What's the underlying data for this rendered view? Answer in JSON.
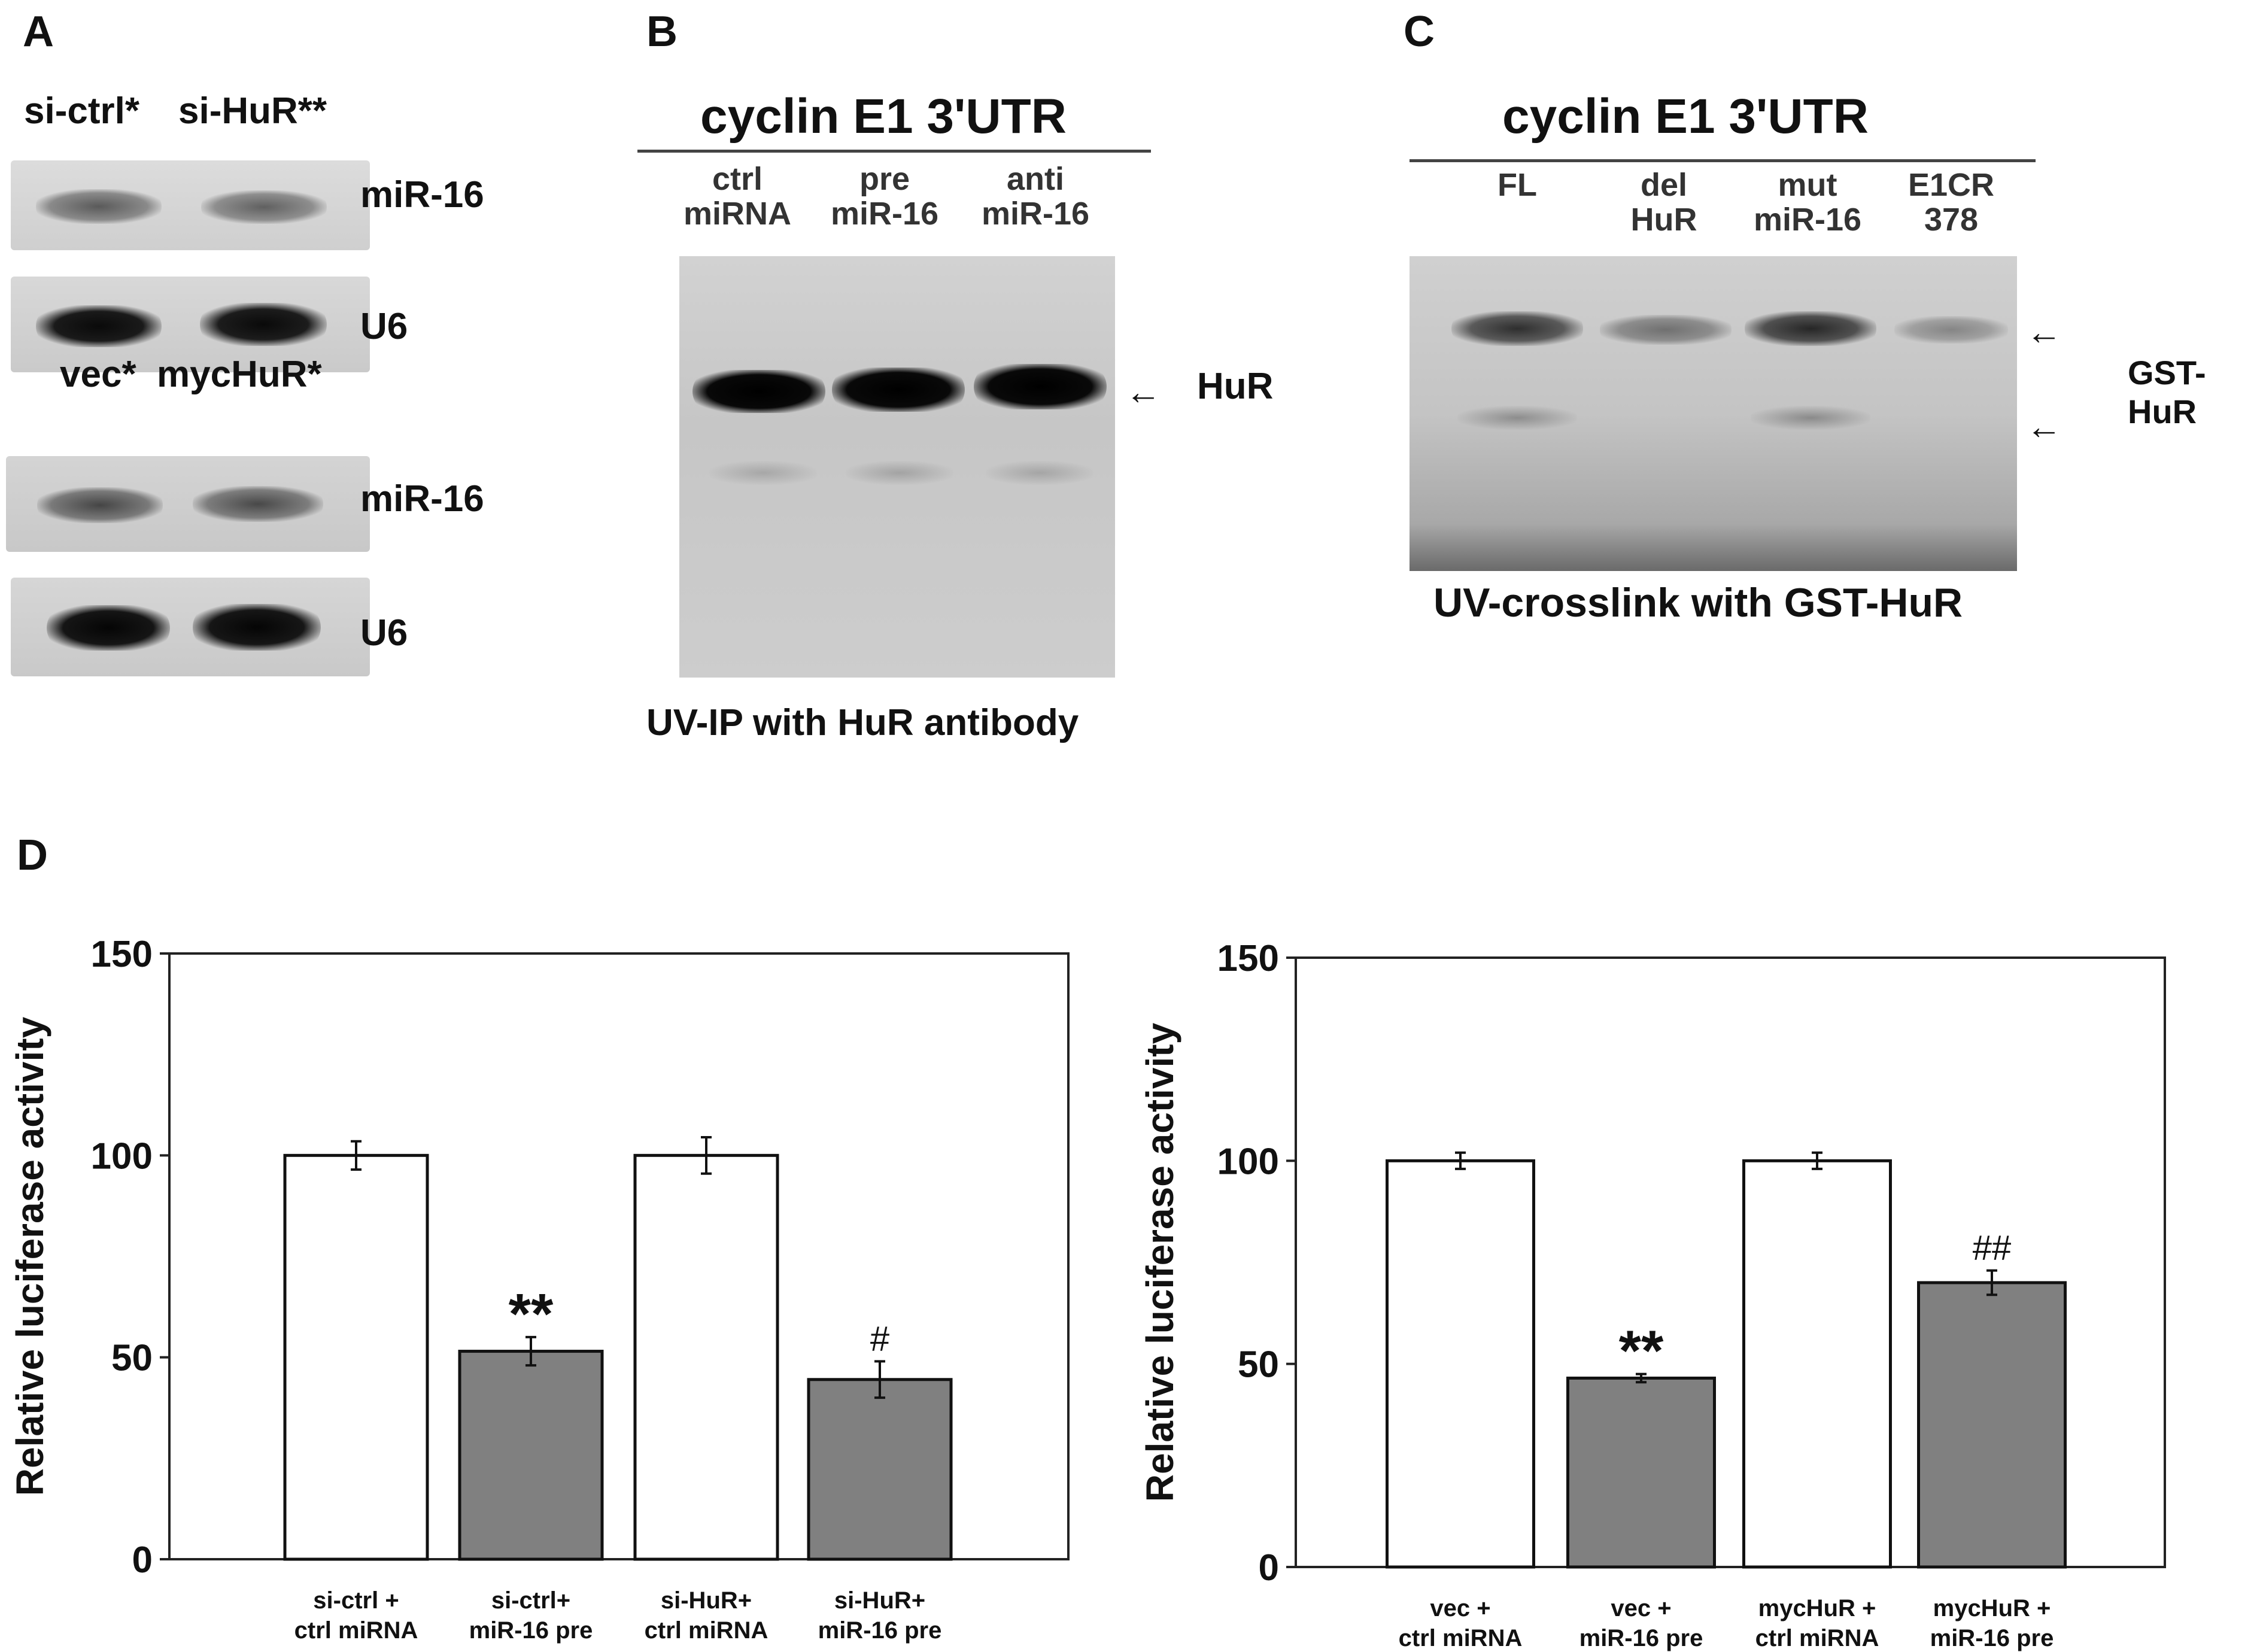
{
  "panel_a": {
    "letter": "A",
    "top_labels": [
      "si-ctrl*",
      "si-HuR**"
    ],
    "bottom_labels": [
      "vec*",
      "mycHuR*"
    ],
    "blots": [
      "miR-16",
      "U6",
      "miR-16",
      "U6"
    ]
  },
  "panel_b": {
    "letter": "B",
    "title": "cyclin E1 3'UTR",
    "lanes": [
      {
        "line1": "ctrl",
        "line2": "miRNA"
      },
      {
        "line1": "pre",
        "line2": "miR-16"
      },
      {
        "line1": "anti",
        "line2": "miR-16"
      }
    ],
    "band_label": "HuR",
    "caption": "UV-IP with HuR antibody"
  },
  "panel_c": {
    "letter": "C",
    "title": "cyclin E1 3'UTR",
    "lanes": [
      {
        "line1": "FL",
        "line2": ""
      },
      {
        "line1": "del",
        "line2": "HuR"
      },
      {
        "line1": "mut",
        "line2": "miR-16"
      },
      {
        "line1": "E1CR",
        "line2": "378"
      }
    ],
    "band_label": "GST-HuR",
    "caption": "UV-crosslink with GST-HuR"
  },
  "panel_d": {
    "letter": "D"
  },
  "chart_data": [
    {
      "type": "bar",
      "ylabel": "Relative luciferase activity",
      "ylim": [
        0,
        150
      ],
      "yticks": [
        "0",
        "50",
        "100",
        "150"
      ],
      "categories": [
        {
          "line1": "si-ctrl +",
          "line2": "ctrl miRNA"
        },
        {
          "line1": "si-ctrl+",
          "line2": "miR-16 pre"
        },
        {
          "line1": "si-HuR+",
          "line2": "ctrl miRNA"
        },
        {
          "line1": "si-HuR+",
          "line2": "miR-16 pre"
        }
      ],
      "values": [
        100,
        51.5,
        100,
        44.5
      ],
      "errors": [
        3.5,
        3.5,
        4.5,
        4.5
      ],
      "fills": [
        "#ffffff",
        "#808080",
        "#ffffff",
        "#808080"
      ],
      "annotations": [
        "",
        "**",
        "",
        "#"
      ]
    },
    {
      "type": "bar",
      "ylabel": "Relative luciferase activity",
      "ylim": [
        0,
        150
      ],
      "yticks": [
        "0",
        "50",
        "100",
        "150"
      ],
      "categories": [
        {
          "line1": "vec +",
          "line2": "ctrl miRNA"
        },
        {
          "line1": "vec +",
          "line2": "miR-16 pre"
        },
        {
          "line1": "mycHuR +",
          "line2": "ctrl miRNA"
        },
        {
          "line1": "mycHuR +",
          "line2": "miR-16 pre"
        }
      ],
      "values": [
        100,
        46.5,
        100,
        70
      ],
      "errors": [
        2,
        1,
        2,
        3
      ],
      "fills": [
        "#ffffff",
        "#808080",
        "#ffffff",
        "#808080"
      ],
      "annotations": [
        "",
        "**",
        "",
        "##"
      ]
    }
  ]
}
